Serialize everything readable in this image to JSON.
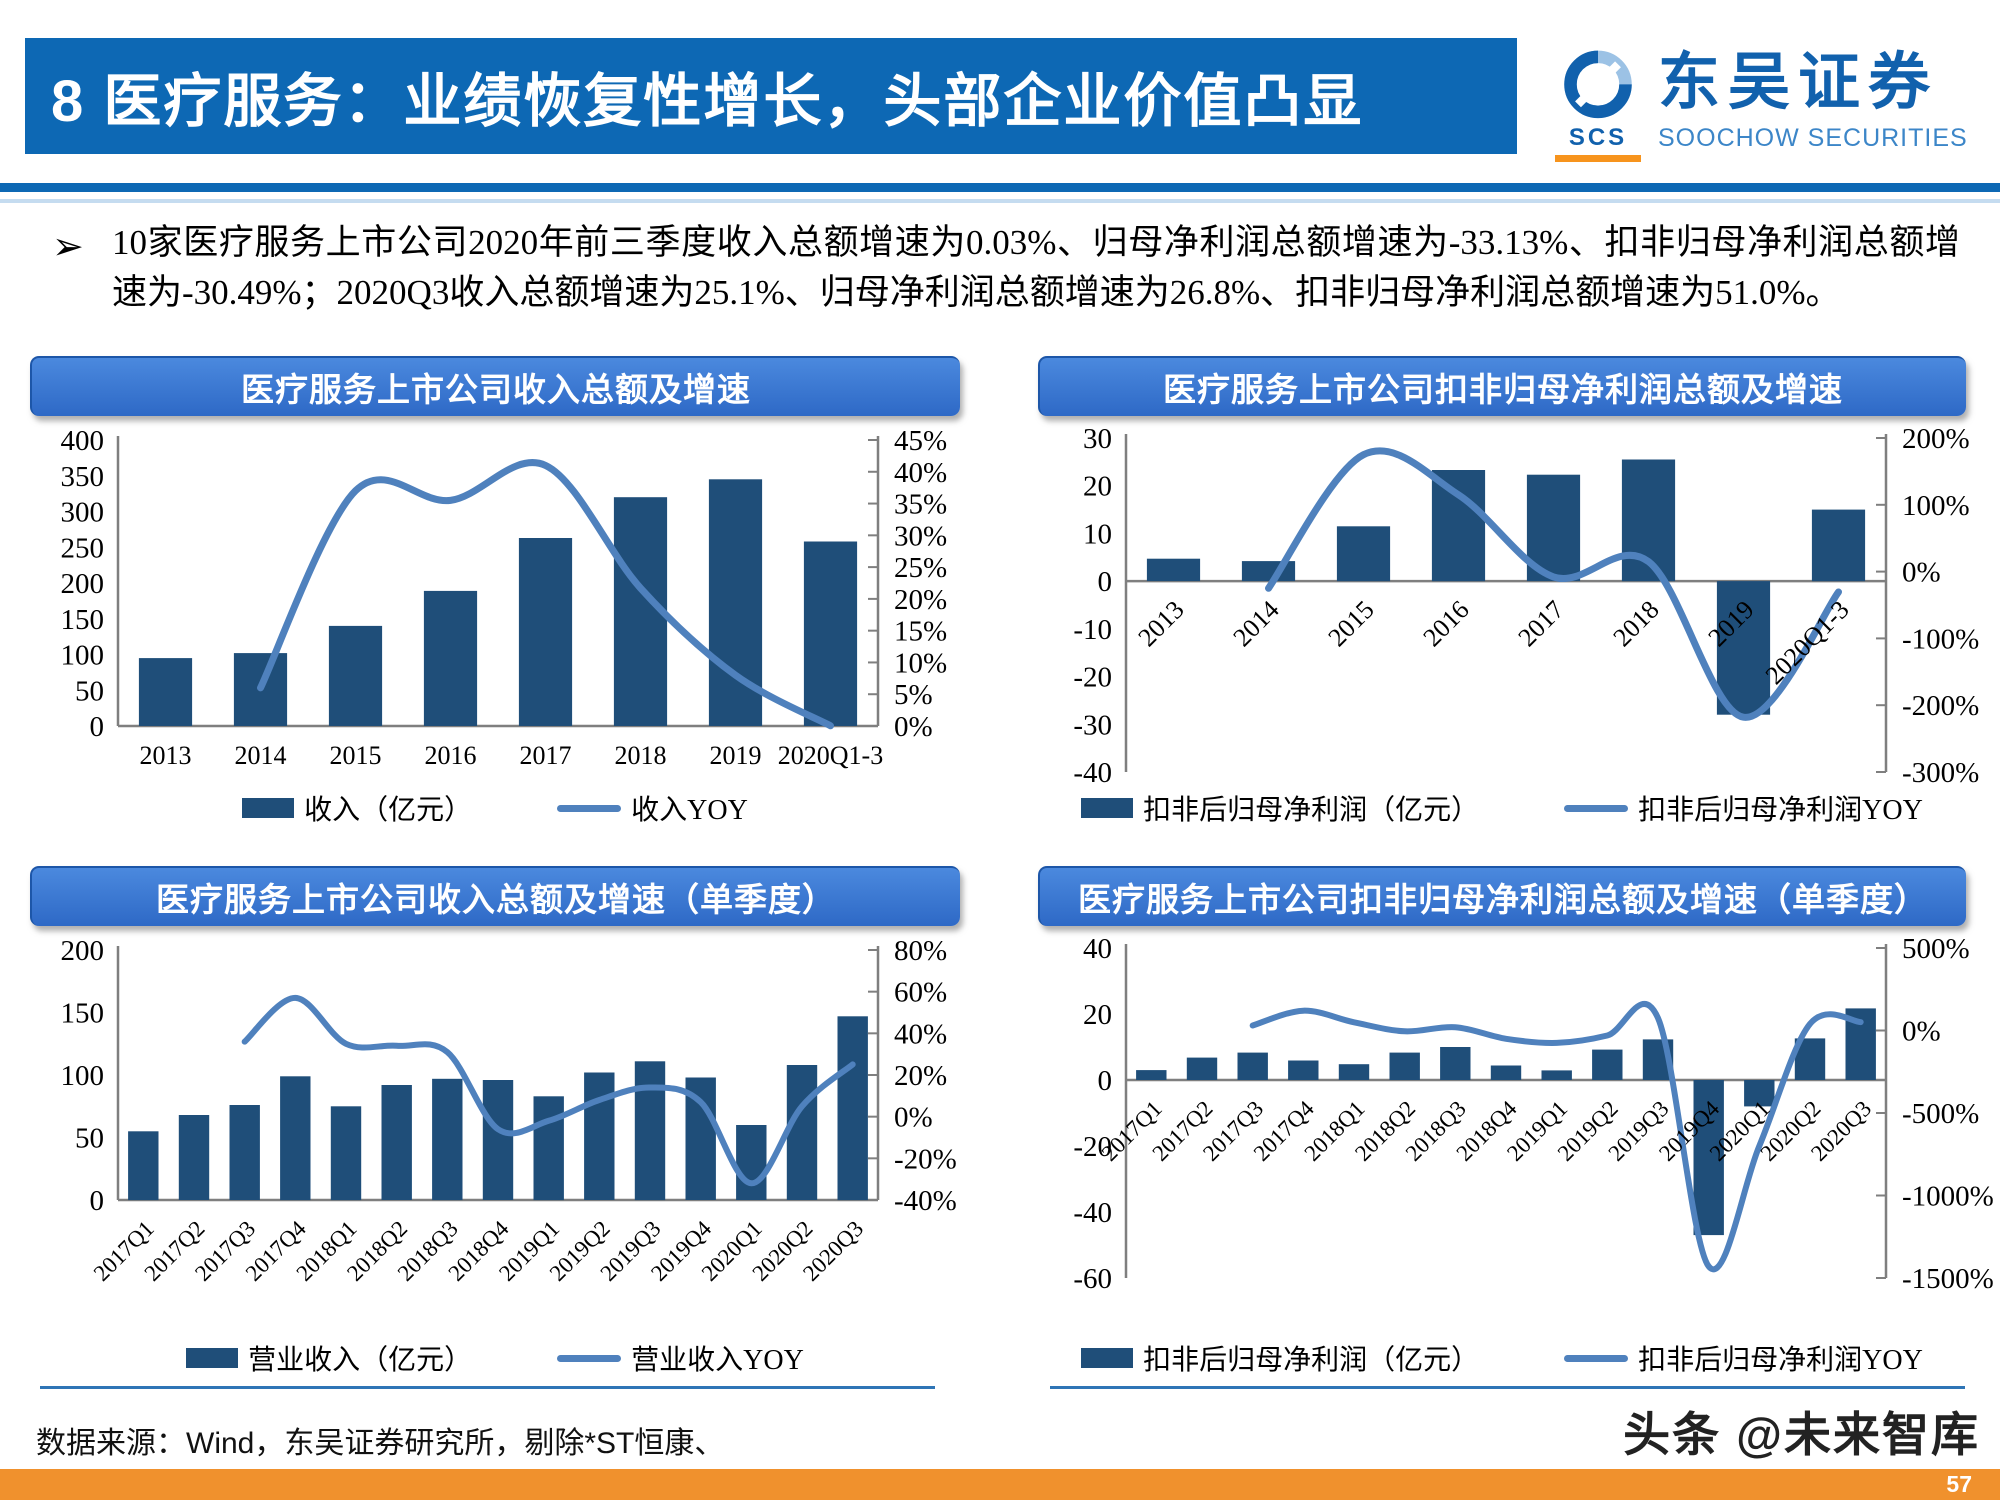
{
  "slide": {
    "header": {
      "title": "8 医疗服务：业绩恢复性增长，头部企业价值凸显"
    },
    "logo": {
      "abbr": "SCS",
      "cn": "东吴证券",
      "en": "SOOCHOW SECURITIES"
    },
    "bullet": {
      "marker": "➢",
      "text": "10家医疗服务上市公司2020年前三季度收入总额增速为0.03%、归母净利润总额增速为-33.13%、扣非归母净利润总额增速为-30.49%；2020Q3收入总额增速为25.1%、归母净利润总额增速为26.8%、扣非归母净利润总额增速为51.0%。"
    },
    "footer": {
      "source": "数据来源：Wind，东吴证券研究所，剔除*ST恒康、",
      "watermark": "头条 @未来智库",
      "page_number": "57"
    }
  },
  "colors": {
    "header_blue": "#0d68b4",
    "header_line_light": "#7fb2dd",
    "title_bar_top": "#4b89de",
    "title_bar_bottom": "#2e69c6",
    "bar": "#1f4e79",
    "line": "#4f81bd",
    "axis": "#7f7f7f",
    "divider": "#2e75b6",
    "strip_orange": "#f0912d",
    "logo_blue": "#1161ad",
    "logo_light_blue": "#3c86c8",
    "logo_ring_light": "#9cc2e5",
    "logo_orange": "#f7941d"
  },
  "chart_data": [
    {
      "id": "revenue-annual",
      "type": "bar+line",
      "title": "医疗服务上市公司收入总额及增速",
      "categories": [
        "2013",
        "2014",
        "2015",
        "2016",
        "2017",
        "2018",
        "2019",
        "2020Q1-3"
      ],
      "series": [
        {
          "name": "收入（亿元）",
          "type": "bar",
          "axis": "left",
          "values": [
            95,
            102,
            140,
            189,
            263,
            320,
            345,
            258
          ]
        },
        {
          "name": "收入YOY",
          "type": "line",
          "axis": "right",
          "values": [
            null,
            6,
            37,
            35.5,
            41,
            21.7,
            8,
            0.03
          ]
        }
      ],
      "left_axis": {
        "min": 0,
        "max": 400,
        "ticks": [
          "400",
          "350",
          "300",
          "250",
          "200",
          "150",
          "100",
          "50",
          "0"
        ]
      },
      "right_axis": {
        "min": 0,
        "max": 45,
        "ticks": [
          "45%",
          "40%",
          "35%",
          "30%",
          "25%",
          "20%",
          "15%",
          "10%",
          "5%",
          "0%"
        ]
      },
      "legend_position": "bottom"
    },
    {
      "id": "nonrecurring-profit-annual",
      "type": "bar+line",
      "title": "医疗服务上市公司扣非归母净利润总额及增速",
      "categories": [
        "2013",
        "2014",
        "2015",
        "2016",
        "2017",
        "2018",
        "2019",
        "2020Q1-3"
      ],
      "series": [
        {
          "name": "扣非后归母净利润（亿元）",
          "type": "bar",
          "axis": "left",
          "values": [
            4.7,
            4.2,
            11.5,
            23.3,
            22.3,
            25.5,
            -28,
            15
          ]
        },
        {
          "name": "扣非后归母净利润YOY",
          "type": "line",
          "axis": "right",
          "values": [
            null,
            -25,
            175,
            115,
            -8,
            15,
            -218,
            -30.49
          ]
        }
      ],
      "left_axis": {
        "min": -40,
        "max": 30,
        "ticks": [
          "30",
          "20",
          "10",
          "0",
          "-10",
          "-20",
          "-30",
          "-40"
        ]
      },
      "right_axis": {
        "min": -300,
        "max": 200,
        "ticks": [
          "200%",
          "100%",
          "0%",
          "-100%",
          "-200%",
          "-300%"
        ]
      },
      "legend_position": "bottom"
    },
    {
      "id": "revenue-quarterly",
      "type": "bar+line",
      "title": "医疗服务上市公司收入总额及增速（单季度）",
      "categories": [
        "2017Q1",
        "2017Q2",
        "2017Q3",
        "2017Q4",
        "2018Q1",
        "2018Q2",
        "2018Q3",
        "2018Q4",
        "2019Q1",
        "2019Q2",
        "2019Q3",
        "2019Q4",
        "2020Q1",
        "2020Q2",
        "2020Q3"
      ],
      "series": [
        {
          "name": "营业收入（亿元）",
          "type": "bar",
          "axis": "left",
          "values": [
            55,
            68,
            76,
            99,
            75,
            92,
            97,
            96,
            83,
            102,
            111,
            98,
            60,
            108,
            147
          ]
        },
        {
          "name": "营业收入YOY",
          "type": "line",
          "axis": "right",
          "values": [
            null,
            null,
            36,
            57,
            35,
            34,
            31,
            -6,
            -2,
            8,
            14,
            7,
            -32,
            5,
            25.1
          ]
        }
      ],
      "left_axis": {
        "min": 0,
        "max": 200,
        "ticks": [
          "200",
          "150",
          "100",
          "50",
          "0"
        ]
      },
      "right_axis": {
        "min": -40,
        "max": 80,
        "ticks": [
          "80%",
          "60%",
          "40%",
          "20%",
          "0%",
          "-20%",
          "-40%"
        ]
      },
      "legend_position": "bottom"
    },
    {
      "id": "nonrecurring-profit-quarterly",
      "type": "bar+line",
      "title": "医疗服务上市公司扣非归母净利润总额及增速（单季度）",
      "categories": [
        "2017Q1",
        "2017Q2",
        "2017Q3",
        "2017Q4",
        "2018Q1",
        "2018Q2",
        "2018Q3",
        "2018Q4",
        "2019Q1",
        "2019Q2",
        "2019Q3",
        "2019Q4",
        "2020Q1",
        "2020Q2",
        "2020Q3"
      ],
      "series": [
        {
          "name": "扣非后归母净利润（亿元）",
          "type": "bar",
          "axis": "left",
          "values": [
            3,
            6.8,
            8.3,
            5.9,
            4.8,
            8.3,
            10,
            4.4,
            2.9,
            9.2,
            12.3,
            -47,
            -8,
            12.6,
            21.7
          ]
        },
        {
          "name": "扣非后归母净利润YOY",
          "type": "line",
          "axis": "right",
          "values": [
            null,
            null,
            30,
            120,
            50,
            -5,
            20,
            -50,
            -75,
            -30,
            75,
            -1430,
            -700,
            40,
            51
          ]
        }
      ],
      "left_axis": {
        "min": -60,
        "max": 40,
        "ticks": [
          "40",
          "20",
          "0",
          "-20",
          "-40",
          "-60"
        ]
      },
      "right_axis": {
        "min": -1500,
        "max": 500,
        "ticks": [
          "500%",
          "0%",
          "-500%",
          "-1000%",
          "-1500%"
        ]
      },
      "legend_position": "bottom"
    }
  ]
}
